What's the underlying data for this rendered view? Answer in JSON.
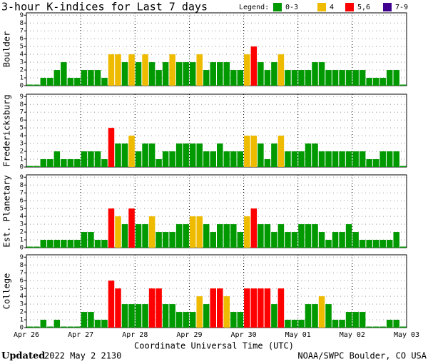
{
  "title": "3-hour K-indices for Last 7 days",
  "legend": {
    "title": "Legend:",
    "items": [
      {
        "label": "0-3",
        "color": "#009900"
      },
      {
        "label": "4",
        "color": "#eebb00"
      },
      {
        "label": "5,6",
        "color": "#ff0000"
      },
      {
        "label": "7-9",
        "color": "#400090"
      }
    ]
  },
  "xlabel": "Coordinate Universal Time (UTC)",
  "footer": {
    "updated_label": "Updated",
    "updated": "2022 May  2 2130",
    "credit": "NOAA/SWPC Boulder, CO USA"
  },
  "chart_data": [
    {
      "type": "bar",
      "ylabel": "Boulder",
      "ylim": [
        0,
        9.3
      ],
      "yticks": [
        0,
        1,
        2,
        3,
        4,
        5,
        6,
        7,
        8,
        9
      ],
      "grid": true,
      "values": [
        0,
        0,
        1,
        1,
        2,
        3,
        1,
        1,
        2,
        2,
        2,
        1,
        4,
        4,
        3,
        4,
        3,
        4,
        3,
        2,
        3,
        4,
        3,
        3,
        3,
        4,
        2,
        3,
        3,
        3,
        2,
        2,
        4,
        5,
        3,
        2,
        3,
        4,
        2,
        2,
        2,
        2,
        3,
        3,
        2,
        2,
        2,
        2,
        2,
        2,
        1,
        1,
        1,
        2,
        2,
        0
      ]
    },
    {
      "type": "bar",
      "ylabel": "Fredericksburg",
      "ylim": [
        0,
        9.3
      ],
      "yticks": [
        0,
        1,
        2,
        3,
        4,
        5,
        6,
        7,
        8,
        9
      ],
      "grid": true,
      "values": [
        0,
        0,
        1,
        1,
        2,
        1,
        1,
        1,
        2,
        2,
        2,
        1,
        5,
        3,
        3,
        4,
        2,
        3,
        3,
        1,
        2,
        2,
        3,
        3,
        3,
        3,
        2,
        2,
        3,
        2,
        2,
        2,
        4,
        4,
        3,
        1,
        3,
        4,
        2,
        2,
        2,
        3,
        3,
        2,
        2,
        2,
        2,
        2,
        2,
        2,
        1,
        1,
        2,
        2,
        2,
        0
      ]
    },
    {
      "type": "bar",
      "ylabel": "Est. Planetary",
      "ylim": [
        0,
        9.3
      ],
      "yticks": [
        0,
        1,
        2,
        3,
        4,
        5,
        6,
        7,
        8,
        9
      ],
      "grid": true,
      "values": [
        0,
        0,
        1,
        1,
        1,
        1,
        1,
        1,
        2,
        2,
        1,
        1,
        5,
        4,
        3,
        5,
        3,
        3,
        4,
        2,
        2,
        2,
        3,
        3,
        4,
        4,
        3,
        2,
        3,
        3,
        3,
        2,
        4,
        5,
        3,
        3,
        2,
        3,
        2,
        2,
        3,
        3,
        3,
        2,
        1,
        2,
        2,
        3,
        2,
        1,
        1,
        1,
        1,
        1,
        2,
        0
      ]
    },
    {
      "type": "bar",
      "ylabel": "College",
      "ylim": [
        0,
        9.3
      ],
      "yticks": [
        0,
        1,
        2,
        3,
        4,
        5,
        6,
        7,
        8,
        9
      ],
      "grid": true,
      "values": [
        0,
        0,
        1,
        0,
        1,
        0,
        0,
        0,
        2,
        2,
        1,
        1,
        6,
        5,
        3,
        3,
        3,
        3,
        5,
        5,
        3,
        3,
        2,
        2,
        2,
        4,
        3,
        5,
        5,
        4,
        2,
        2,
        5,
        5,
        5,
        5,
        3,
        5,
        1,
        1,
        1,
        3,
        3,
        4,
        3,
        1,
        1,
        2,
        2,
        2,
        0,
        0,
        0,
        1,
        1,
        0
      ],
      "xlim": [
        0,
        56
      ],
      "xticks": [
        {
          "value": 0,
          "label": "Apr 26"
        },
        {
          "value": 8,
          "label": "Apr 27"
        },
        {
          "value": 16,
          "label": "Apr 28"
        },
        {
          "value": 24,
          "label": "Apr 29"
        },
        {
          "value": 32,
          "label": "Apr 30"
        },
        {
          "value": 40,
          "label": "May 01"
        },
        {
          "value": 48,
          "label": "May 02"
        },
        {
          "value": 56,
          "label": "May 03"
        }
      ]
    }
  ]
}
